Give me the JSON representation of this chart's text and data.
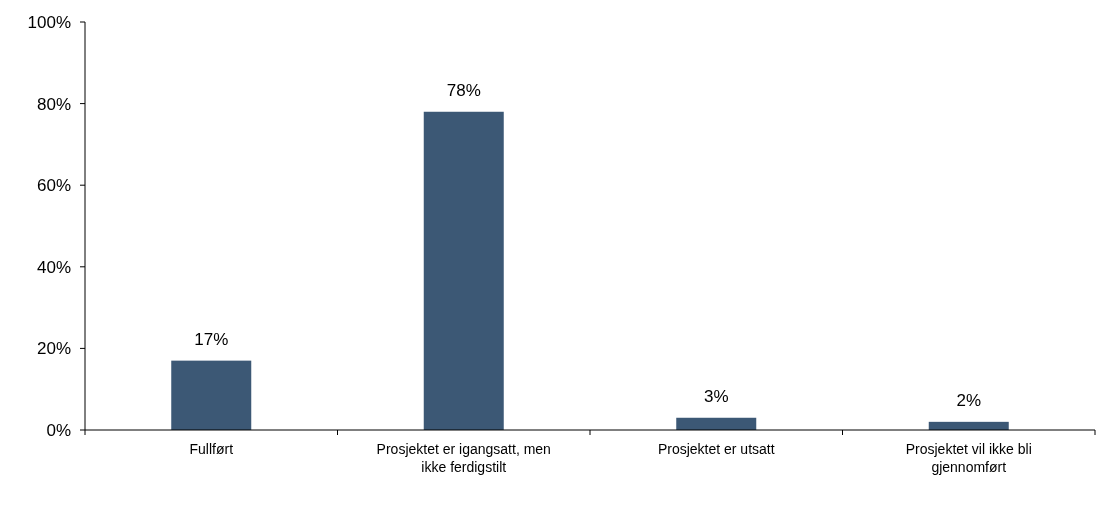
{
  "chart_data": {
    "type": "bar",
    "categories": [
      "Fullført",
      "Prosjektet er igangsatt, men ikke ferdigstilt",
      "Prosjektet er utsatt",
      "Prosjektet vil ikke bli gjennomført"
    ],
    "values": [
      17,
      78,
      3,
      2
    ],
    "value_labels": [
      "17%",
      "78%",
      "3%",
      "2%"
    ],
    "color": "#3c5875",
    "ylim": [
      0,
      100
    ],
    "yticks": [
      {
        "value": 0,
        "label": "0%"
      },
      {
        "value": 20,
        "label": "20%"
      },
      {
        "value": 40,
        "label": "40%"
      },
      {
        "value": 60,
        "label": "60%"
      },
      {
        "value": 80,
        "label": "80%"
      },
      {
        "value": 100,
        "label": "100%"
      }
    ],
    "grid": false
  }
}
